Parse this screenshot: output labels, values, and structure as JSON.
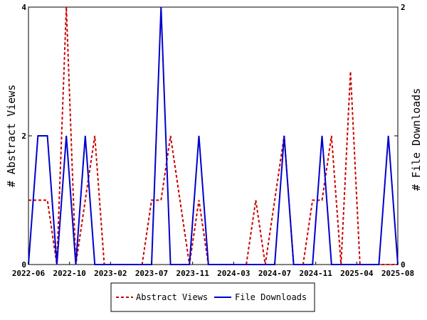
{
  "chart_data": {
    "type": "line",
    "x_tick_labels": [
      "2022-06",
      "2022-10",
      "2023-02",
      "2023-07",
      "2023-11",
      "2024-03",
      "2024-07",
      "2024-11",
      "2025-04",
      "2025-08"
    ],
    "ylabel_left": "# Abstract Views",
    "ylabel_right": "# File Downloads",
    "ylim_left": [
      0,
      4
    ],
    "ylim_right": [
      0,
      2
    ],
    "yticks_left": [
      0,
      2,
      4
    ],
    "yticks_right": [
      0,
      1,
      2
    ],
    "legend_position": "bottom-center",
    "grid": false,
    "series": [
      {
        "name": "Abstract Views",
        "axis": "left",
        "color": "#cc0000",
        "style": "dashed",
        "values": [
          1,
          1,
          1,
          0,
          4,
          0,
          1,
          2,
          0,
          0,
          0,
          0,
          0,
          1,
          1,
          2,
          1,
          0,
          1,
          0,
          0,
          0,
          0,
          0,
          1,
          0,
          1,
          2,
          0,
          0,
          1,
          1,
          2,
          0,
          3,
          0,
          0,
          0,
          0,
          0
        ]
      },
      {
        "name": "File Downloads",
        "axis": "right",
        "color": "#0000cc",
        "style": "solid",
        "values": [
          0,
          1,
          1,
          0,
          1,
          0,
          1,
          0,
          0,
          0,
          0,
          0,
          0,
          0,
          2,
          0,
          0,
          0,
          1,
          0,
          0,
          0,
          0,
          0,
          0,
          0,
          0,
          1,
          0,
          0,
          0,
          1,
          0,
          0,
          0,
          0,
          0,
          0,
          1,
          0
        ]
      }
    ]
  }
}
